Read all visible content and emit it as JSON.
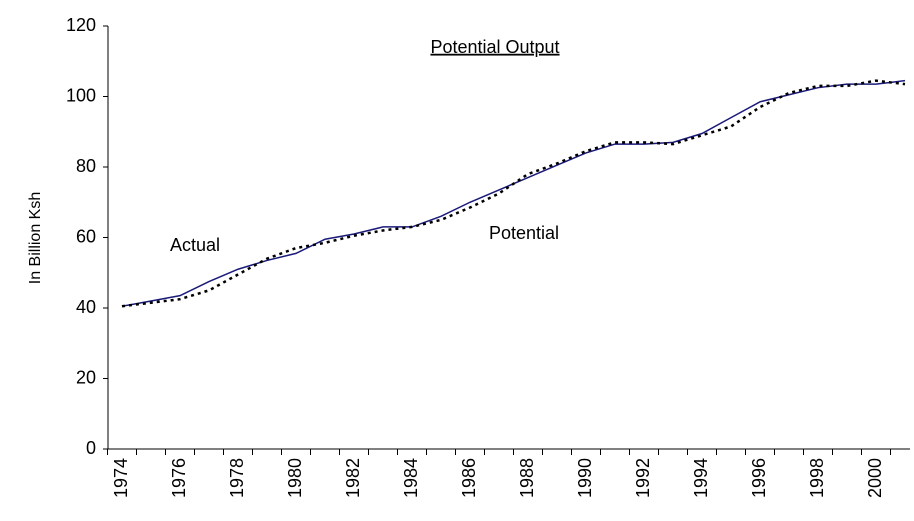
{
  "chart_data": {
    "type": "line",
    "title": "Potential Output",
    "y_label": "In Billion Ksh",
    "categories": [
      "1974",
      null,
      "1976",
      null,
      "1978",
      null,
      "1980",
      null,
      "1982",
      null,
      "1984",
      null,
      "1986",
      null,
      "1988",
      null,
      "1990",
      null,
      "1992",
      null,
      "1994",
      null,
      "1996",
      null,
      "1998",
      null,
      "2000",
      null
    ],
    "series": [
      {
        "name": "Actual",
        "color": "#1a1a7a",
        "dash": false,
        "values": [
          40.5,
          42,
          43.5,
          47.5,
          51,
          53.5,
          55.5,
          59.5,
          61,
          63,
          63,
          66,
          70,
          73.5,
          77,
          80.5,
          84,
          86.5,
          86.5,
          87,
          89.5,
          94,
          98.5,
          100.5,
          102.5,
          103.5,
          103.5,
          104.5
        ]
      },
      {
        "name": "Potential",
        "color": "#000000",
        "dash": true,
        "values": [
          40.5,
          41.5,
          42.5,
          45,
          49.5,
          54,
          57,
          58.5,
          60.5,
          62,
          63,
          65,
          68.5,
          72.5,
          78,
          81,
          84.5,
          87,
          87,
          86.5,
          89,
          91.5,
          97,
          101,
          103,
          103,
          104.5,
          103.5
        ]
      }
    ],
    "ylim": [
      0,
      120
    ],
    "yticks": [
      0,
      20,
      40,
      60,
      80,
      100,
      120
    ],
    "grid": false
  }
}
